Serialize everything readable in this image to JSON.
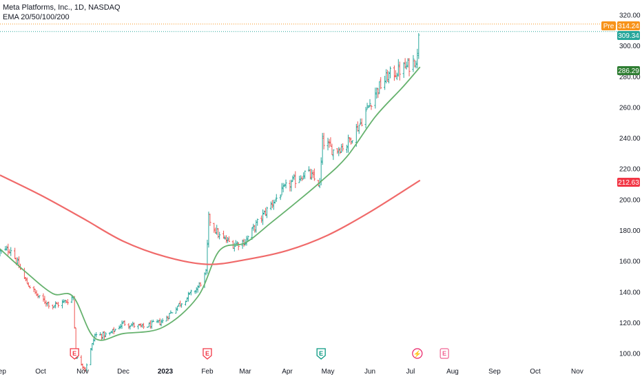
{
  "legend": {
    "symbol_line": "Meta Platforms, Inc., 1D, NASDAQ",
    "indicator_line": "EMA 20/50/100/200"
  },
  "badges": {
    "pre_label": "Pre",
    "pre_value": "314.24",
    "last_value": "309.34",
    "ema_short_value": "286.29",
    "ema_long_value": "212.63"
  },
  "colors": {
    "up": "#26a69a",
    "down": "#ef5350",
    "ema_short": "#66b26e",
    "ema_long": "#f06a6a",
    "pre": "#f7931a",
    "last": "#26a69a",
    "ema_short_badge": "#2e7d32",
    "ema_long_badge": "#f23645"
  },
  "events": [
    {
      "date": "2022-10-26",
      "label": "E",
      "kind": "earnings-past"
    },
    {
      "date": "2023-02-01",
      "label": "E",
      "kind": "earnings-past"
    },
    {
      "date": "2023-04-26",
      "label": "E",
      "kind": "earnings-recent"
    },
    {
      "date": "2023-07-06",
      "label": "⚡",
      "kind": "dividend-split"
    },
    {
      "date": "2023-07-26",
      "label": "E",
      "kind": "earnings-upcoming"
    }
  ],
  "chart_data": {
    "type": "ohlc",
    "title": "Meta Platforms, Inc., 1D, NASDAQ",
    "y_ticks": [
      100,
      120,
      140,
      160,
      180,
      200,
      220,
      240,
      260,
      280,
      300,
      320
    ],
    "y_tick_labels": [
      "100.00",
      "120.00",
      "140.00",
      "160.00",
      "180.00",
      "200.00",
      "220.00",
      "240.00",
      "260.00",
      "280.00",
      "300.00",
      "320.00"
    ],
    "ylim": [
      96,
      320
    ],
    "xlim": [
      "2022-09-01",
      "2023-11-30"
    ],
    "x_ticks": [
      "2022-09-01",
      "2022-10-01",
      "2022-11-01",
      "2022-12-01",
      "2023-01-01",
      "2023-02-01",
      "2023-03-01",
      "2023-04-01",
      "2023-05-01",
      "2023-06-01",
      "2023-07-01",
      "2023-08-01",
      "2023-09-01",
      "2023-10-01",
      "2023-11-01"
    ],
    "x_tick_labels": [
      "Sep",
      "Oct",
      "Nov",
      "Dec",
      "2023",
      "Feb",
      "Mar",
      "Apr",
      "May",
      "Jun",
      "Jul",
      "Aug",
      "Sep",
      "Oct",
      "Nov"
    ],
    "price_anchors": [
      {
        "date": "2022-09-01",
        "price": 166
      },
      {
        "date": "2022-09-09",
        "price": 168
      },
      {
        "date": "2022-09-20",
        "price": 147
      },
      {
        "date": "2022-09-30",
        "price": 136
      },
      {
        "date": "2022-10-10",
        "price": 131
      },
      {
        "date": "2022-10-20",
        "price": 134
      },
      {
        "date": "2022-10-25",
        "price": 137
      },
      {
        "date": "2022-10-27",
        "price": 98
      },
      {
        "date": "2022-11-03",
        "price": 90
      },
      {
        "date": "2022-11-10",
        "price": 112
      },
      {
        "date": "2022-11-20",
        "price": 112
      },
      {
        "date": "2022-12-01",
        "price": 120
      },
      {
        "date": "2022-12-15",
        "price": 117
      },
      {
        "date": "2022-12-30",
        "price": 121
      },
      {
        "date": "2023-01-10",
        "price": 131
      },
      {
        "date": "2023-01-25",
        "price": 143
      },
      {
        "date": "2023-01-31",
        "price": 152
      },
      {
        "date": "2023-02-02",
        "price": 188
      },
      {
        "date": "2023-02-10",
        "price": 176
      },
      {
        "date": "2023-02-20",
        "price": 171
      },
      {
        "date": "2023-03-01",
        "price": 173
      },
      {
        "date": "2023-03-10",
        "price": 185
      },
      {
        "date": "2023-03-20",
        "price": 197
      },
      {
        "date": "2023-04-01",
        "price": 209
      },
      {
        "date": "2023-04-15",
        "price": 218
      },
      {
        "date": "2023-04-25",
        "price": 210
      },
      {
        "date": "2023-04-27",
        "price": 238
      },
      {
        "date": "2023-05-05",
        "price": 232
      },
      {
        "date": "2023-05-15",
        "price": 236
      },
      {
        "date": "2023-05-25",
        "price": 250
      },
      {
        "date": "2023-06-05",
        "price": 270
      },
      {
        "date": "2023-06-15",
        "price": 281
      },
      {
        "date": "2023-06-25",
        "price": 285
      },
      {
        "date": "2023-07-01",
        "price": 288
      },
      {
        "date": "2023-07-06",
        "price": 293
      },
      {
        "date": "2023-07-07",
        "price": 310
      }
    ],
    "series": [
      {
        "name": "EMA 20",
        "points": [
          {
            "date": "2022-09-01",
            "value": 168
          },
          {
            "date": "2022-09-20",
            "value": 153
          },
          {
            "date": "2022-10-10",
            "value": 139
          },
          {
            "date": "2022-10-25",
            "value": 137
          },
          {
            "date": "2022-11-10",
            "value": 110
          },
          {
            "date": "2022-12-01",
            "value": 113
          },
          {
            "date": "2022-12-30",
            "value": 117
          },
          {
            "date": "2023-01-25",
            "value": 137
          },
          {
            "date": "2023-02-10",
            "value": 167
          },
          {
            "date": "2023-03-01",
            "value": 172
          },
          {
            "date": "2023-03-20",
            "value": 185
          },
          {
            "date": "2023-04-10",
            "value": 200
          },
          {
            "date": "2023-04-26",
            "value": 212
          },
          {
            "date": "2023-05-15",
            "value": 228
          },
          {
            "date": "2023-06-05",
            "value": 254
          },
          {
            "date": "2023-06-25",
            "value": 273
          },
          {
            "date": "2023-07-08",
            "value": 286.29
          }
        ]
      },
      {
        "name": "EMA 200",
        "points": [
          {
            "date": "2022-09-01",
            "value": 216
          },
          {
            "date": "2022-10-01",
            "value": 203
          },
          {
            "date": "2022-11-01",
            "value": 188
          },
          {
            "date": "2022-12-01",
            "value": 173
          },
          {
            "date": "2023-01-01",
            "value": 163
          },
          {
            "date": "2023-02-01",
            "value": 158
          },
          {
            "date": "2023-03-01",
            "value": 161
          },
          {
            "date": "2023-04-01",
            "value": 167
          },
          {
            "date": "2023-05-01",
            "value": 177
          },
          {
            "date": "2023-06-01",
            "value": 192
          },
          {
            "date": "2023-07-08",
            "value": 212.63
          }
        ]
      }
    ],
    "markers": {
      "pre_market": 314.24,
      "last_price": 309.34
    },
    "grid": false
  }
}
